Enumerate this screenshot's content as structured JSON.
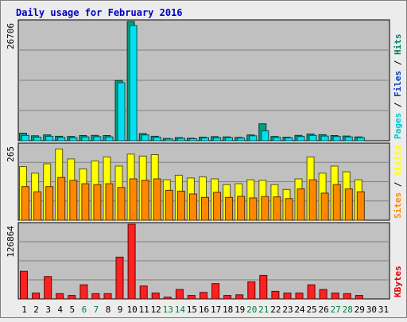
{
  "chart_data": {
    "type": "bar",
    "title": "Daily usage for February 2016",
    "days": [
      "1",
      "2",
      "3",
      "4",
      "5",
      "6",
      "7",
      "8",
      "9",
      "10",
      "11",
      "12",
      "13",
      "14",
      "15",
      "16",
      "17",
      "18",
      "19",
      "20",
      "21",
      "22",
      "23",
      "24",
      "25",
      "26",
      "27",
      "28",
      "29",
      "30",
      "31"
    ],
    "weekend_days": [
      "6",
      "7",
      "13",
      "14",
      "20",
      "21",
      "27",
      "28"
    ],
    "panels": [
      {
        "id": "hits",
        "max_label": "26706",
        "ymax": 26706,
        "legend": [
          {
            "text": "Pages",
            "color": "#00c8d0"
          },
          {
            "text": "Files",
            "color": "#0040c0"
          },
          {
            "text": "Hits",
            "color": "#00806a"
          }
        ],
        "series": [
          {
            "name": "Hits",
            "color": "#00a080",
            "values": [
              1700,
              1100,
              1300,
              1000,
              950,
              1150,
              1200,
              1150,
              13500,
              26706,
              1600,
              1000,
              500,
              700,
              550,
              800,
              900,
              850,
              750,
              1300,
              3800,
              950,
              800,
              1200,
              1500,
              1350,
              1150,
              1050,
              850,
              0,
              0
            ]
          },
          {
            "name": "Pages",
            "color": "#00e0f0",
            "values": [
              1200,
              800,
              1000,
              750,
              700,
              850,
              900,
              850,
              13000,
              25800,
              1300,
              800,
              400,
              550,
              450,
              650,
              700,
              700,
              600,
              1100,
              2200,
              750,
              650,
              950,
              1200,
              1050,
              950,
              850,
              700,
              0,
              0
            ]
          }
        ]
      },
      {
        "id": "visits",
        "max_label": "265",
        "ymax": 265,
        "legend": [
          {
            "text": "Sites",
            "color": "#ff8800"
          },
          {
            "text": "Visits",
            "color": "#ffff00"
          }
        ],
        "series": [
          {
            "name": "Visits",
            "color": "#ffff00",
            "values": [
              188,
              165,
              198,
              250,
              215,
              180,
              208,
              222,
              190,
              232,
              225,
              230,
              142,
              158,
              148,
              152,
              145,
              125,
              128,
              142,
              140,
              125,
              108,
              145,
              222,
              165,
              190,
              170,
              142,
              0,
              0
            ]
          },
          {
            "name": "Sites",
            "color": "#ff8800",
            "values": [
              118,
              100,
              118,
              150,
              140,
              128,
              125,
              128,
              115,
              145,
              140,
              145,
              105,
              102,
              92,
              80,
              98,
              80,
              84,
              78,
              83,
              82,
              76,
              110,
              142,
              95,
              125,
              110,
              100,
              0,
              0
            ]
          }
        ]
      },
      {
        "id": "kbytes",
        "max_label": "126864",
        "ymax": 126864,
        "legend": [
          {
            "text": "KBytes",
            "color": "#e00000"
          }
        ],
        "series": [
          {
            "name": "KBytes",
            "color": "#ff2020",
            "values": [
              47000,
              10000,
              38000,
              9000,
              6000,
              24000,
              9000,
              9000,
              71000,
              126864,
              22000,
              10000,
              3000,
              16000,
              6000,
              11000,
              26000,
              6000,
              7000,
              29000,
              40000,
              13000,
              10000,
              10000,
              24000,
              16000,
              10000,
              9000,
              6000,
              0,
              0
            ]
          }
        ]
      }
    ]
  }
}
